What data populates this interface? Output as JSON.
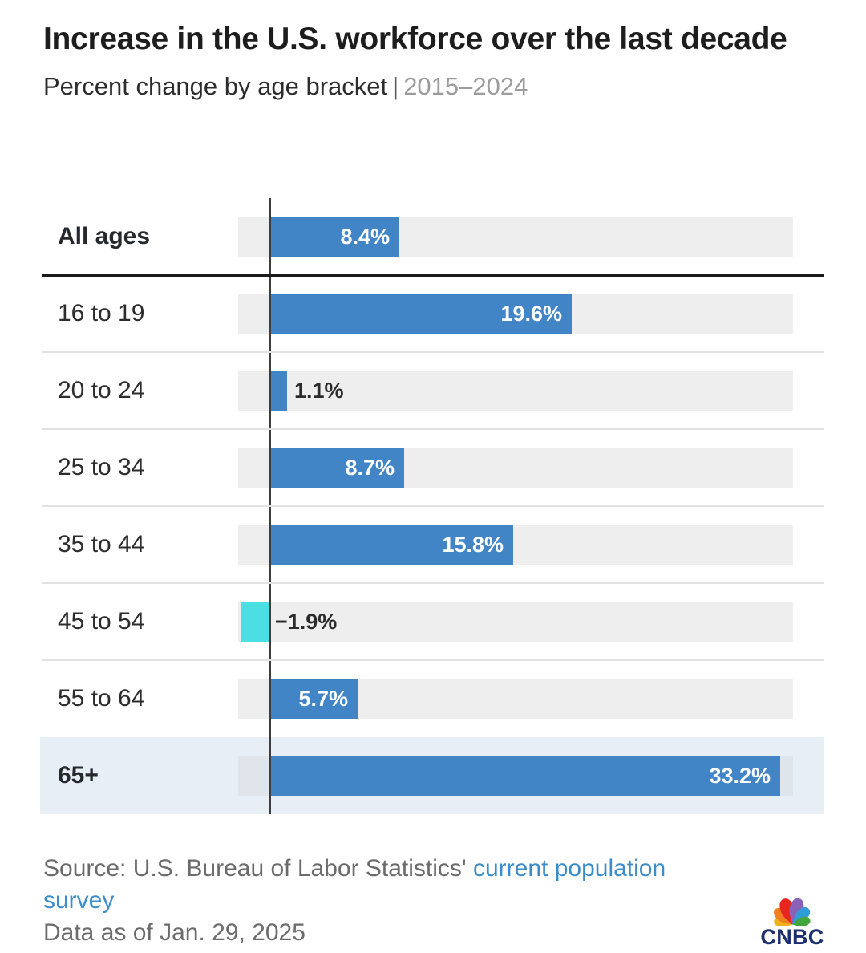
{
  "header": {
    "title": "Increase in the U.S. workforce over the last decade",
    "subtitle_main": "Percent change by age bracket",
    "subtitle_divider": "|",
    "subtitle_period": "2015–2024"
  },
  "chart_data": {
    "type": "bar",
    "orientation": "horizontal",
    "title": "Increase in the U.S. workforce over the last decade",
    "subtitle": "Percent change by age bracket | 2015–2024",
    "categories": [
      "All ages",
      "16 to 19",
      "20 to 24",
      "25 to 34",
      "35 to 44",
      "45 to 54",
      "55 to 64",
      "65+"
    ],
    "values": [
      8.4,
      19.6,
      1.1,
      8.7,
      15.8,
      -1.9,
      5.7,
      33.2
    ],
    "value_labels": [
      "8.4%",
      "19.6%",
      "1.1%",
      "8.7%",
      "15.8%",
      "−1.9%",
      "5.7%",
      "33.2%"
    ],
    "emphasized_categories": [
      "All ages",
      "65+"
    ],
    "highlighted_category": "65+",
    "axis": {
      "min": -2.1,
      "max": 34.0,
      "zero_line": true,
      "grid": false,
      "tick_labels_visible": false
    },
    "legend": "none",
    "colors": {
      "bar_positive": "#4285c6",
      "bar_negative": "#4bdfe3",
      "track": "#eeeeee",
      "highlight_row_background": "#e8eef5",
      "value_inside": "#ffffff",
      "value_outside": "#2b2b2b"
    }
  },
  "footer": {
    "source_prefix": "Source: U.S. Bureau of Labor Statistics' ",
    "source_link": "current population survey",
    "data_as_of": "Data as of Jan. 29, 2025"
  },
  "logo": {
    "wordmark": "CNBC",
    "wordmark_color": "#1b2e6e",
    "peacock_colors": [
      "#efb21a",
      "#f0801e",
      "#e7261d",
      "#8a63b8",
      "#2f9cd7",
      "#43a63d"
    ]
  }
}
